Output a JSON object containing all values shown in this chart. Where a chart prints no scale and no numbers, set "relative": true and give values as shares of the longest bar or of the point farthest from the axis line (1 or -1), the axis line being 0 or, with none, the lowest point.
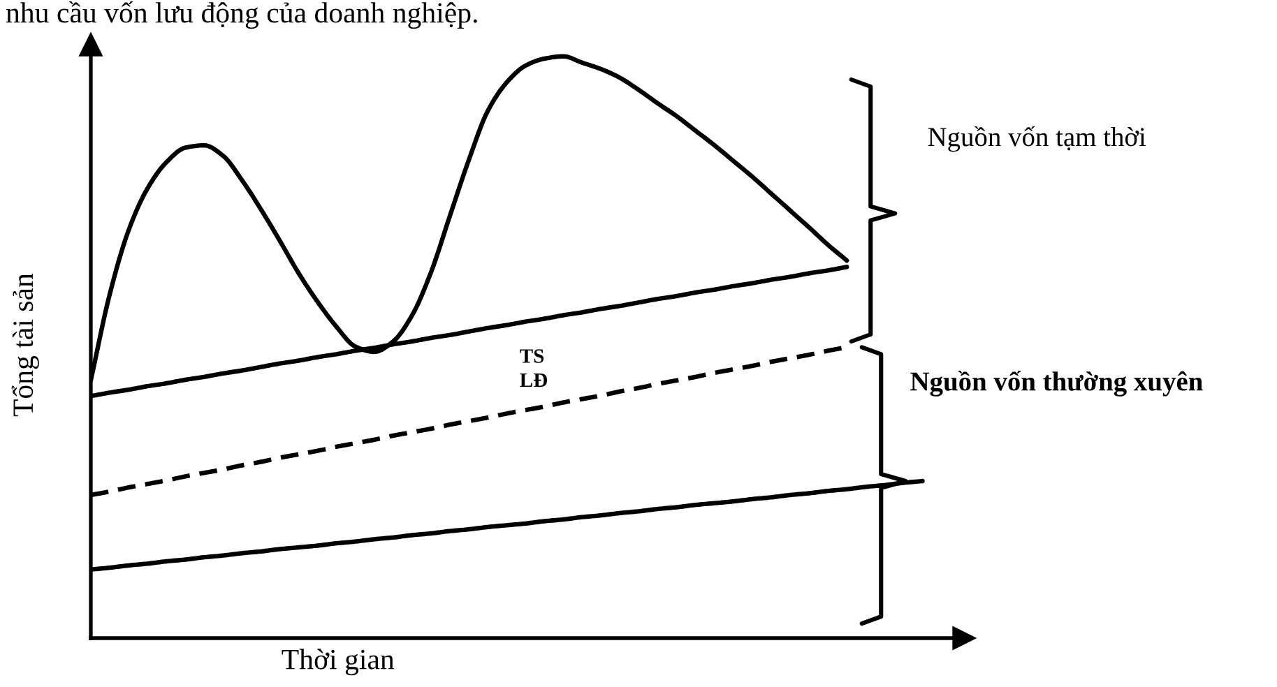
{
  "chart_data": {
    "type": "line",
    "title": "nhu cầu vốn lưu động của doanh nghiệp.",
    "xlabel": "Thời gian",
    "ylabel": "Tổng tài sản",
    "relative": true,
    "categories": [
      null,
      null,
      null,
      null,
      null,
      null,
      null,
      null,
      null,
      null,
      null,
      null,
      null,
      null,
      null,
      null,
      null,
      null,
      null,
      null,
      null,
      null,
      null,
      null,
      null,
      null,
      null,
      null,
      null,
      null,
      null,
      null,
      null,
      null,
      null,
      null,
      null,
      null,
      null,
      null,
      null,
      null,
      null,
      null,
      null
    ],
    "series": [
      {
        "color": "#000000",
        "values": [
          0.443,
          0.591,
          0.701,
          0.773,
          0.818,
          0.843,
          0.847,
          0.829,
          0.787,
          0.737,
          0.683,
          0.627,
          0.578,
          0.535,
          0.501,
          0.492,
          0.51,
          0.555,
          0.629,
          0.726,
          0.822,
          0.906,
          0.955,
          0.984,
          0.996,
          1.0,
          0.989,
          0.978,
          0.963,
          0.942,
          0.919,
          0.897,
          0.872,
          0.847,
          0.82,
          0.793,
          0.764,
          0.735,
          0.706,
          0.676,
          0.649,
          null,
          null,
          null,
          null
        ]
      },
      {
        "color": "#000000",
        "values": [
          0.416,
          0.422,
          0.427,
          0.433,
          0.438,
          0.444,
          0.449,
          0.455,
          0.46,
          0.466,
          0.472,
          0.477,
          0.483,
          0.488,
          0.494,
          0.499,
          0.505,
          0.51,
          0.516,
          0.521,
          0.527,
          0.533,
          0.538,
          0.544,
          0.549,
          0.555,
          0.56,
          0.566,
          0.571,
          0.577,
          0.583,
          0.588,
          0.594,
          0.599,
          0.605,
          0.61,
          0.616,
          0.621,
          0.627,
          0.632,
          0.638,
          null,
          null,
          null,
          null
        ]
      },
      {
        "color": "#000000",
        "line_style": "dashed",
        "values": [
          0.246,
          0.252,
          0.259,
          0.265,
          0.271,
          0.278,
          0.284,
          0.29,
          0.297,
          0.303,
          0.31,
          0.316,
          0.322,
          0.329,
          0.335,
          0.341,
          0.348,
          0.354,
          0.36,
          0.367,
          0.373,
          0.379,
          0.386,
          0.392,
          0.398,
          0.405,
          0.411,
          0.417,
          0.424,
          0.43,
          0.437,
          0.443,
          0.449,
          0.456,
          0.462,
          0.468,
          0.475,
          0.481,
          0.487,
          0.494,
          0.5,
          null,
          null,
          null,
          null
        ]
      },
      {
        "color": "#000000",
        "values": [
          0.118,
          0.121,
          0.125,
          0.128,
          0.132,
          0.135,
          0.139,
          0.142,
          0.146,
          0.149,
          0.153,
          0.156,
          0.159,
          0.163,
          0.166,
          0.17,
          0.173,
          0.177,
          0.18,
          0.184,
          0.187,
          0.191,
          0.194,
          0.197,
          0.201,
          0.204,
          0.208,
          0.211,
          0.215,
          0.218,
          0.222,
          0.225,
          0.229,
          0.232,
          0.235,
          0.239,
          0.242,
          0.246,
          0.249,
          0.253,
          0.256,
          0.26,
          0.263,
          0.267,
          0.27
        ]
      }
    ],
    "annotations": [
      "TS\nLĐ",
      "Nguồn vốn tạm thời",
      "Nguồn vốn thường xuyên"
    ]
  }
}
